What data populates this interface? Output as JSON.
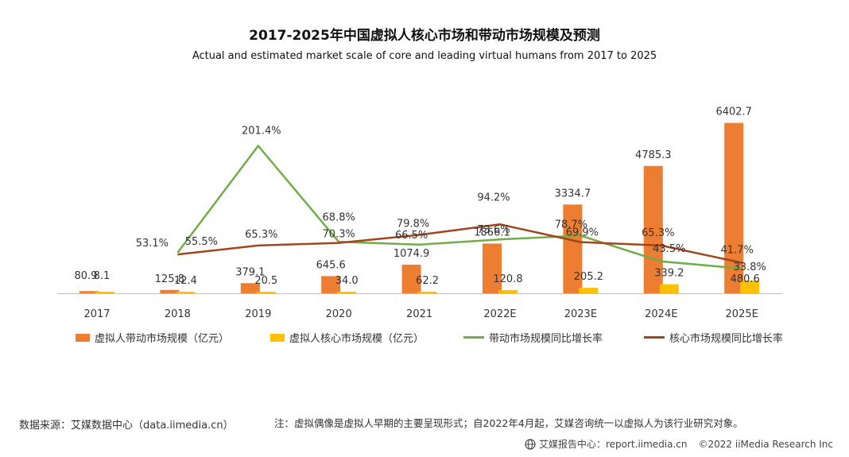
{
  "chart_data": {
    "type": "bar+line",
    "title": "2017-2025年中国虚拟人核心市场和带动市场规模及预测",
    "subtitle": "Actual and estimated market scale of core and leading virtual humans from 2017 to 2025",
    "categories": [
      "2017",
      "2018",
      "2019",
      "2020",
      "2021",
      "2022E",
      "2023E",
      "2024E",
      "2025E"
    ],
    "bar_series": [
      {
        "name": "虚拟人带动市场规模（亿元）",
        "color": "#ED7D31",
        "values": [
          80.9,
          125.8,
          379.1,
          645.6,
          1074.9,
          1866.1,
          3334.7,
          4785.3,
          6402.7
        ],
        "labels": [
          "80.9",
          "125.8",
          "379.1",
          "645.6",
          "1074.9",
          "1866.1",
          "3334.7",
          "4785.3",
          "6402.7"
        ]
      },
      {
        "name": "虚拟人核心市场规模（亿元）",
        "color": "#FFC000",
        "values": [
          8.1,
          12.4,
          20.5,
          34.0,
          62.2,
          120.8,
          205.2,
          339.2,
          480.6
        ],
        "labels": [
          "8.1",
          "12.4",
          "20.5",
          "34.0",
          "62.2",
          "120.8",
          "205.2",
          "339.2",
          "480.6"
        ]
      }
    ],
    "line_series": [
      {
        "name": "带动市场规模同比增长率",
        "color": "#70AD47",
        "values": [
          null,
          55.5,
          201.4,
          70.3,
          66.5,
          73.6,
          78.7,
          43.5,
          33.8
        ],
        "labels": [
          "",
          "55.5%",
          "201.4%",
          "70.3%",
          "66.5%",
          "73.6%",
          "78.7%",
          "43.5%",
          "33.8%"
        ]
      },
      {
        "name": "核心市场规模同比增长率",
        "color": "#A0461E",
        "values": [
          null,
          53.1,
          65.3,
          68.8,
          79.8,
          94.2,
          69.9,
          65.3,
          41.7
        ],
        "labels": [
          "",
          "53.1%",
          "65.3%",
          "68.8%",
          "79.8%",
          "94.2%",
          "69.9%",
          "65.3%",
          "41.7%"
        ]
      }
    ],
    "bar_axis_range": [
      0,
      6600
    ],
    "line_axis_range": [
      0,
      240
    ],
    "legend_position": "bottom",
    "grid": false
  },
  "source": "数据来源：艾媒数据中心（data.iimedia.cn）",
  "note": "注：虚拟偶像是虚拟人早期的主要呈现形式；自2022年4月起，艾媒咨询统一以虚拟人为该行业研究对象。",
  "footer": {
    "brand": "艾媒报告中心：report.iimedia.cn",
    "copyright": "©2022 iiMedia Research Inc"
  }
}
